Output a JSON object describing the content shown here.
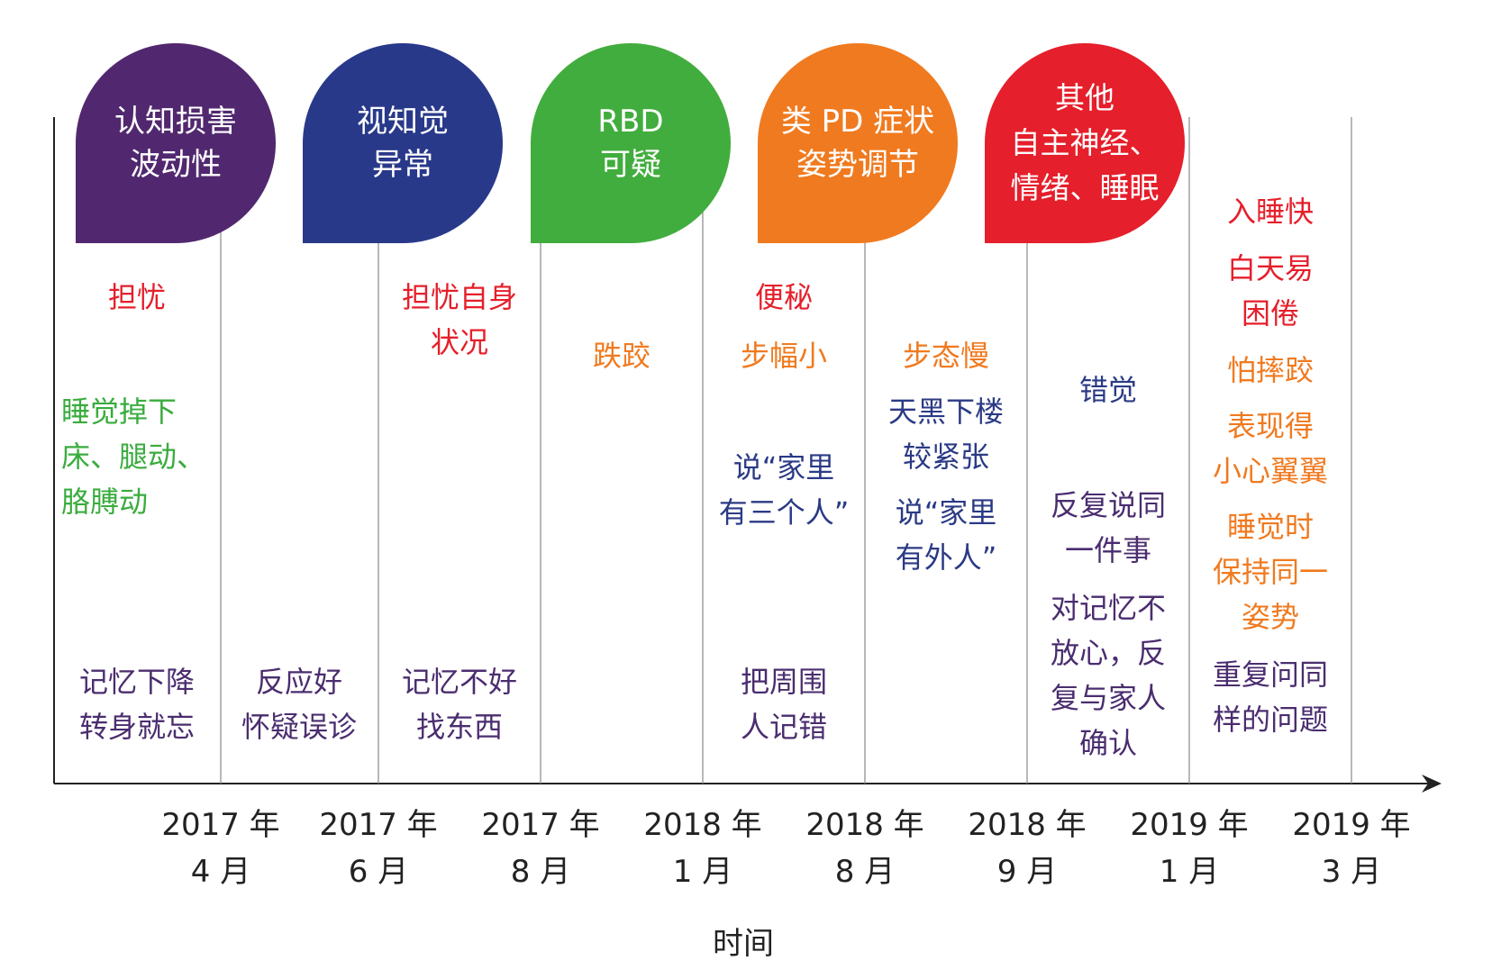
{
  "categories": [
    {
      "lines": [
        "认知损害",
        "波动性"
      ],
      "color": "#51286f"
    },
    {
      "lines": [
        "视知觉",
        "异常"
      ],
      "color": "#29398a"
    },
    {
      "lines": [
        "RBD",
        "可疑"
      ],
      "color": "#41ad3e"
    },
    {
      "lines": [
        "类 PD 症状",
        "姿势调节"
      ],
      "color": "#f07a1f"
    },
    {
      "lines": [
        "其他",
        "自主神经、",
        "情绪、睡眠"
      ],
      "color": "#e51f2b"
    }
  ],
  "notes": {
    "worry": [
      "担忧"
    ],
    "sleep_fall": [
      "睡觉掉下",
      "床、腿动、",
      "胳膊动"
    ],
    "memory_decline": [
      "记忆下降",
      "转身就忘"
    ],
    "good_response": [
      "反应好",
      "怀疑误诊"
    ],
    "worry_self": [
      "担忧自身",
      "状况"
    ],
    "memory_bad": [
      "记忆不好",
      "找东西"
    ],
    "stumble": [
      "跌跤"
    ],
    "constipation": [
      "便秘"
    ],
    "small_steps": [
      "步幅小"
    ],
    "three_people": [
      "说“家里",
      "有三个人”"
    ],
    "misremember": [
      "把周围",
      "人记错"
    ],
    "slow_gait": [
      "步态慢"
    ],
    "nervous_stairs": [
      "天黑下楼",
      "较紧张"
    ],
    "outsider": [
      "说“家里",
      "有外人”"
    ],
    "illusion": [
      "错觉"
    ],
    "repeat_same": [
      "反复说同",
      "一件事"
    ],
    "distrust_memory": [
      "对记忆不",
      "放心，反",
      "复与家人",
      "确认"
    ],
    "fast_sleep": [
      "入睡快"
    ],
    "daytime_sleepy": [
      "白天易",
      "困倦"
    ],
    "fear_fall": [
      "怕摔跤"
    ],
    "cautious": [
      "表现得",
      "小心翼翼"
    ],
    "same_posture": [
      "睡觉时",
      "保持同一",
      "姿势"
    ],
    "repeat_question": [
      "重复问同",
      "样的问题"
    ]
  },
  "dates": [
    {
      "year": "2017 年",
      "month": "4 月"
    },
    {
      "year": "2017 年",
      "month": "6 月"
    },
    {
      "year": "2017 年",
      "month": "8 月"
    },
    {
      "year": "2018 年",
      "month": "1 月"
    },
    {
      "year": "2018 年",
      "month": "8 月"
    },
    {
      "year": "2018 年",
      "month": "9 月"
    },
    {
      "year": "2019 年",
      "month": "1 月"
    },
    {
      "year": "2019 年",
      "month": "3 月"
    }
  ],
  "axis_label": "时间"
}
